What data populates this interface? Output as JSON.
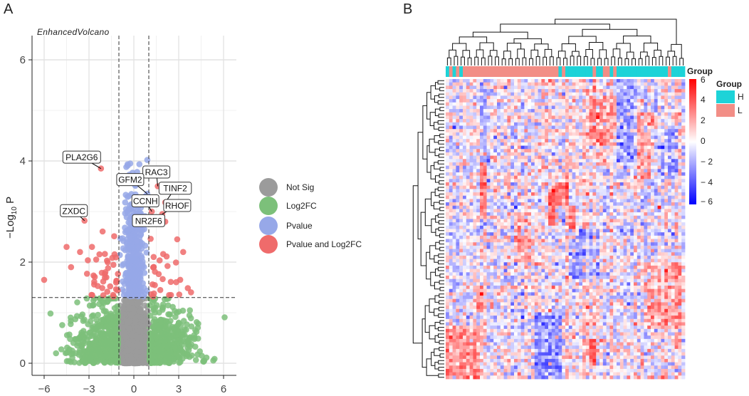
{
  "panels": {
    "a": "A",
    "b": "B"
  },
  "volcano": {
    "subtitle": "EnhancedVolcano",
    "ylabel_prefix": "−Log",
    "ylabel_sub": "10",
    "ylabel_suffix": " P",
    "colors": {
      "not_sig": "#9b9b9b",
      "log2fc": "#7cc07a",
      "pvalue": "#97a8e8",
      "both": "#ef6b6b"
    },
    "legend": [
      {
        "label": "Not Sig",
        "color": "#9b9b9b"
      },
      {
        "label": "Log2FC",
        "color": "#7cc07a"
      },
      {
        "label": "Pvalue",
        "color": "#97a8e8"
      },
      {
        "label": "Pvalue and Log2FC",
        "color": "#ef6b6b"
      }
    ]
  },
  "heatmap": {
    "group_legend_title": "Group",
    "colorbar_title": "Group",
    "groups": [
      {
        "label": "H",
        "color": "#1dd3d8"
      },
      {
        "label": "L",
        "color": "#f28e86"
      }
    ],
    "colorbar_ticks": [
      "6",
      "4",
      "2",
      "0",
      "− 2",
      "− 4",
      "− 6"
    ]
  },
  "chart_data": [
    {
      "type": "scatter",
      "title": "EnhancedVolcano",
      "xlabel": "",
      "ylabel": "-Log10 P",
      "xlim": [
        -6.5,
        6.5
      ],
      "ylim": [
        0,
        6.2
      ],
      "xticks": [
        -6,
        -3,
        0,
        3,
        6
      ],
      "xtick_labels": [
        "−6",
        "−3",
        "0",
        "3",
        "6"
      ],
      "yticks": [
        0,
        2,
        4,
        6
      ],
      "ytick_labels": [
        "0",
        "2",
        "4",
        "6"
      ],
      "thresholds": {
        "log2fc": [
          -1,
          1
        ],
        "neg_log10_p": 1.3
      },
      "labeled_points": [
        {
          "label": "PLA2G6",
          "x": -2.2,
          "y": 3.85
        },
        {
          "label": "RAC3",
          "x": 1.6,
          "y": 3.5
        },
        {
          "label": "GFM2",
          "x": 0.9,
          "y": 3.35
        },
        {
          "label": "TINF2",
          "x": 2.1,
          "y": 3.18
        },
        {
          "label": "CCNH",
          "x": 1.2,
          "y": 3.0
        },
        {
          "label": "RHOF",
          "x": 1.9,
          "y": 2.95
        },
        {
          "label": "ZXDC",
          "x": -3.3,
          "y": 2.82
        },
        {
          "label": "NR2F6",
          "x": 1.7,
          "y": 2.82
        }
      ],
      "legend": [
        "Not Sig",
        "Log2FC",
        "Pvalue",
        "Pvalue and Log2FC"
      ]
    },
    {
      "type": "heatmap",
      "title": "",
      "columns": 70,
      "rows": 90,
      "value_range": [
        -6,
        6
      ],
      "colorbar_ticks": [
        6,
        4,
        2,
        0,
        -2,
        -4,
        -6
      ],
      "column_groups": [
        "H",
        "L",
        "H",
        "L",
        "H",
        "L",
        "L",
        "L",
        "L",
        "L",
        "L",
        "L",
        "L",
        "L",
        "L",
        "L",
        "L",
        "L",
        "L",
        "L",
        "L",
        "L",
        "L",
        "L",
        "L",
        "L",
        "L",
        "L",
        "L",
        "L",
        "L",
        "L",
        "L",
        "H",
        "L",
        "H",
        "H",
        "H",
        "H",
        "H",
        "H",
        "H",
        "H",
        "L",
        "H",
        "H",
        "L",
        "L",
        "H",
        "L",
        "H",
        "H",
        "H",
        "H",
        "H",
        "H",
        "H",
        "H",
        "H",
        "H",
        "H",
        "H",
        "H",
        "H",
        "H",
        "L",
        "H",
        "H",
        "H",
        "H"
      ],
      "group_legend": [
        "H",
        "L"
      ]
    }
  ]
}
